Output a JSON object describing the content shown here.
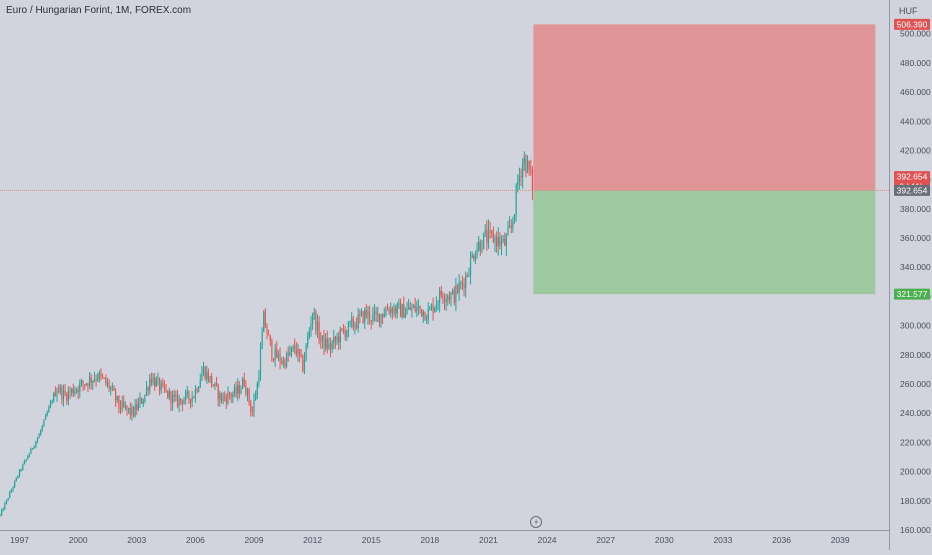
{
  "header": {
    "title": "Euro / Hungarian Forint, 1M, FOREX.com",
    "currency": "HUF"
  },
  "colors": {
    "up": "#26a69a",
    "down": "#ef5350",
    "background": "#d1d4dc",
    "axis_text": "#4a4f5c",
    "loss_zone": "#e09696",
    "profit_zone": "#9dc8a0",
    "price_line": "#e07a6a"
  },
  "chart_data": {
    "type": "candlestick",
    "x_range": [
      1996.0,
      2041.5
    ],
    "y_range": [
      160,
      508
    ],
    "y_ticks": [
      160,
      180,
      200,
      220,
      240,
      260,
      280,
      300,
      320,
      340,
      360,
      380,
      400,
      420,
      440,
      460,
      480,
      500
    ],
    "y_tick_labels": [
      "160.000",
      "180.000",
      "200.000",
      "220.000",
      "240.000",
      "260.000",
      "280.000",
      "300.000",
      "320.000",
      "340.000",
      "360.000",
      "380.000",
      "400.000",
      "420.000",
      "440.000",
      "460.000",
      "480.000",
      "500.000"
    ],
    "x_ticks": [
      1997,
      2000,
      2003,
      2006,
      2009,
      2012,
      2015,
      2018,
      2021,
      2024,
      2027,
      2030,
      2033,
      2036,
      2039
    ],
    "x_tick_labels": [
      "1997",
      "2000",
      "2003",
      "2006",
      "2009",
      "2012",
      "2015",
      "2018",
      "2021",
      "2024",
      "2027",
      "2030",
      "2033",
      "2036",
      "2039"
    ],
    "price_keyframes": [
      [
        1996.0,
        170
      ],
      [
        1997.0,
        200
      ],
      [
        1998.0,
        225
      ],
      [
        1998.9,
        258
      ],
      [
        1999.3,
        252
      ],
      [
        2000.0,
        258
      ],
      [
        2001.0,
        266
      ],
      [
        2001.6,
        258
      ],
      [
        2002.1,
        245
      ],
      [
        2002.8,
        240
      ],
      [
        2003.4,
        252
      ],
      [
        2003.7,
        265
      ],
      [
        2004.3,
        256
      ],
      [
        2005.0,
        248
      ],
      [
        2005.9,
        252
      ],
      [
        2006.4,
        270
      ],
      [
        2006.8,
        262
      ],
      [
        2007.3,
        250
      ],
      [
        2008.1,
        254
      ],
      [
        2008.5,
        262
      ],
      [
        2008.9,
        240
      ],
      [
        2009.2,
        262
      ],
      [
        2009.5,
        305
      ],
      [
        2009.9,
        282
      ],
      [
        2010.5,
        275
      ],
      [
        2011.1,
        285
      ],
      [
        2011.5,
        272
      ],
      [
        2012.0,
        310
      ],
      [
        2012.4,
        290
      ],
      [
        2012.9,
        285
      ],
      [
        2013.5,
        295
      ],
      [
        2014.2,
        302
      ],
      [
        2014.7,
        308
      ],
      [
        2015.2,
        305
      ],
      [
        2015.9,
        312
      ],
      [
        2016.6,
        310
      ],
      [
        2017.4,
        312
      ],
      [
        2017.9,
        308
      ],
      [
        2018.6,
        322
      ],
      [
        2019.2,
        320
      ],
      [
        2019.8,
        332
      ],
      [
        2020.3,
        352
      ],
      [
        2020.8,
        360
      ],
      [
        2021.3,
        360
      ],
      [
        2021.8,
        355
      ],
      [
        2022.2,
        368
      ],
      [
        2022.5,
        398
      ],
      [
        2022.8,
        415
      ],
      [
        2023.1,
        405
      ],
      [
        2023.3,
        392.654
      ]
    ],
    "position": {
      "type": "short",
      "entry": 392.654,
      "stop": 506.39,
      "target": 321.577,
      "x_start": 2023.3,
      "x_end": 2040.8
    },
    "last_price": 392.654,
    "labels": {
      "stop": "506.390",
      "last_price": "392.654",
      "countdown": "9d 11h",
      "entry": "392.654",
      "target": "321.577"
    },
    "grid": false
  }
}
